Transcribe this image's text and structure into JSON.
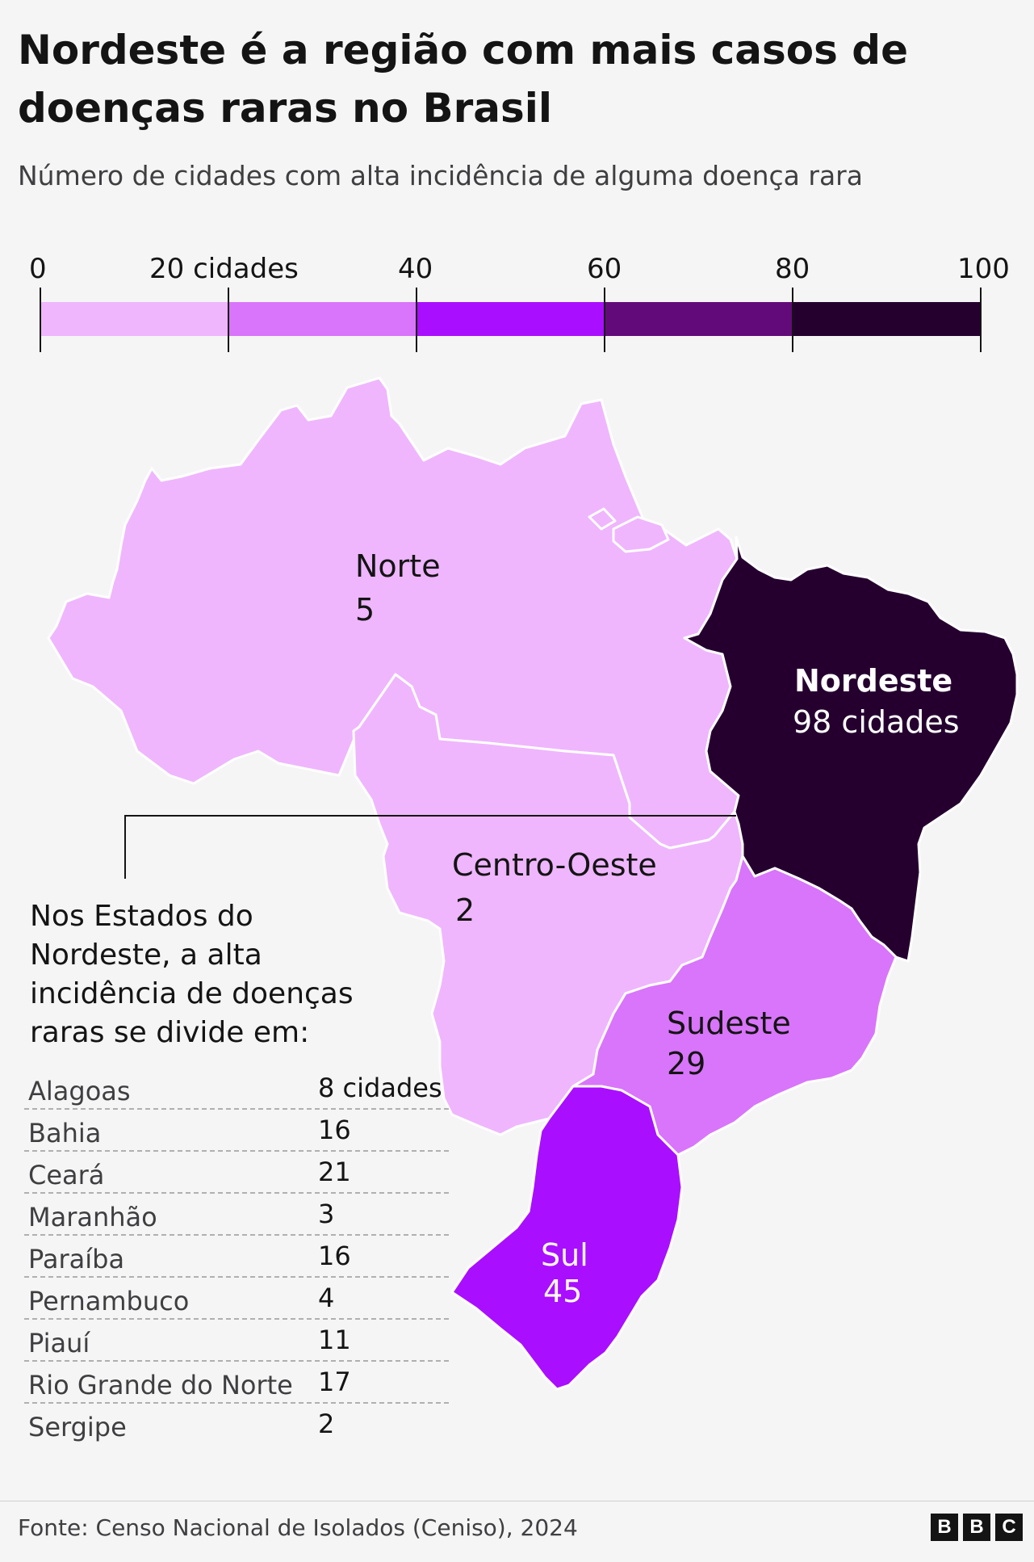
{
  "title": "Nordeste é a região com mais casos de doenças raras no Brasil",
  "subtitle": "Número de cidades com alta incidência de alguma doença rara",
  "legend": {
    "ticks": [
      "0",
      "20 cidades",
      "40",
      "60",
      "80",
      "100"
    ],
    "bins": [
      {
        "from": 0,
        "to": 20,
        "color": "#efb6fd"
      },
      {
        "from": 20,
        "to": 40,
        "color": "#d975fa"
      },
      {
        "from": 40,
        "to": 60,
        "color": "#aa0eff"
      },
      {
        "from": 60,
        "to": 80,
        "color": "#630a7a"
      },
      {
        "from": 80,
        "to": 100,
        "color": "#25002f"
      }
    ]
  },
  "regions": {
    "norte": {
      "name": "Norte",
      "value": "5",
      "color": "#efb6fd"
    },
    "centro_oeste": {
      "name": "Centro-Oeste",
      "value": "2",
      "color": "#efb6fd"
    },
    "nordeste": {
      "name": "Nordeste",
      "value": "98 cidades",
      "color": "#25002f"
    },
    "sudeste": {
      "name": "Sudeste",
      "value": "29",
      "color": "#d975fa"
    },
    "sul": {
      "name": "Sul",
      "value": "45",
      "color": "#aa0eff"
    }
  },
  "note": {
    "lines": [
      "Nos Estados do",
      "Nordeste, a alta",
      "incidência de doenças",
      "raras se divide em:"
    ]
  },
  "states_table": [
    {
      "state": "Alagoas",
      "value": "8 cidades"
    },
    {
      "state": "Bahia",
      "value": "16"
    },
    {
      "state": "Ceará",
      "value": "21"
    },
    {
      "state": "Maranhão",
      "value": "3"
    },
    {
      "state": "Paraíba",
      "value": "16"
    },
    {
      "state": "Pernambuco",
      "value": "4"
    },
    {
      "state": "Piauí",
      "value": "11"
    },
    {
      "state": "Rio Grande do Norte",
      "value": "17"
    },
    {
      "state": "Sergipe",
      "value": "2"
    }
  ],
  "source": "Fonte: Censo Nacional de Isolados (Ceniso), 2024",
  "logo": [
    "B",
    "B",
    "C"
  ]
}
